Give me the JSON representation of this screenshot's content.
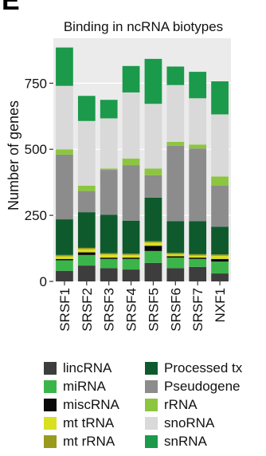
{
  "panel_letter": "E",
  "chart_data": {
    "type": "bar",
    "stacked": true,
    "title": "Binding in ncRNA biotypes",
    "ylabel": "Number of genes",
    "xlabel": "",
    "ylim": [
      0,
      920
    ],
    "yticks": [
      0,
      250,
      500,
      750
    ],
    "categories": [
      "SRSF1",
      "SRSF2",
      "SRSF3",
      "SRSF4",
      "SRSF5",
      "SRSF6",
      "SRSF7",
      "NXF1"
    ],
    "series": [
      {
        "name": "lincRNA",
        "color": "#3d3d3d",
        "values": [
          40,
          60,
          50,
          45,
          70,
          50,
          55,
          30
        ]
      },
      {
        "name": "miRNA",
        "color": "#3bb54a",
        "values": [
          40,
          40,
          35,
          40,
          45,
          40,
          30,
          45
        ]
      },
      {
        "name": "miscRNA",
        "color": "#0a0a0a",
        "values": [
          5,
          10,
          5,
          5,
          20,
          5,
          5,
          10
        ]
      },
      {
        "name": "mt tRNA",
        "color": "#d9e021",
        "values": [
          10,
          12,
          12,
          10,
          12,
          8,
          8,
          12
        ]
      },
      {
        "name": "mt rRNA",
        "color": "#9a9a1f",
        "values": [
          5,
          5,
          5,
          5,
          5,
          5,
          5,
          5
        ]
      },
      {
        "name": "Processed tx",
        "color": "#0e5a2c",
        "values": [
          135,
          135,
          145,
          125,
          165,
          120,
          125,
          105
        ]
      },
      {
        "name": "Pseudogene",
        "color": "#8c8c8c",
        "values": [
          245,
          80,
          170,
          210,
          85,
          285,
          275,
          155
        ]
      },
      {
        "name": "rRNA",
        "color": "#8cc63f",
        "values": [
          20,
          20,
          5,
          25,
          25,
          15,
          15,
          35
        ]
      },
      {
        "name": "snoRNA",
        "color": "#d9d9d9",
        "values": [
          240,
          245,
          190,
          250,
          245,
          215,
          175,
          235
        ]
      },
      {
        "name": "snRNA",
        "color": "#1a9a4a",
        "values": [
          145,
          95,
          70,
          100,
          170,
          70,
          100,
          125
        ]
      }
    ],
    "legend_position": "bottom"
  }
}
